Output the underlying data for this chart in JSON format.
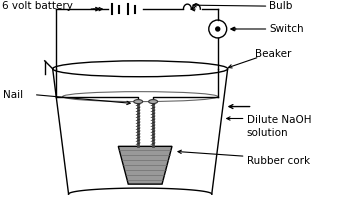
{
  "bg_color": "#ffffff",
  "line_color": "#000000",
  "label_fontsize": 7.5,
  "labels": {
    "battery": "6 volt battery",
    "bulb": "Bulb",
    "switch": "Switch",
    "beaker": "Beaker",
    "nail": "Nail",
    "dilute": "Dilute NaOH\nsolution",
    "cork": "Rubber cork"
  },
  "cork_color": "#999999",
  "nail_color": "#777777"
}
